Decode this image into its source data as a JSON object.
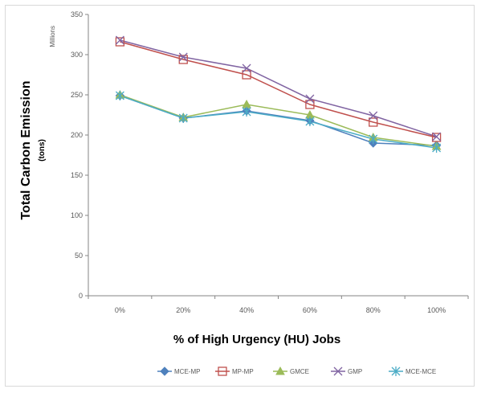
{
  "chart_data": {
    "type": "line",
    "title": "",
    "xlabel": "% of High Urgency (HU) Jobs",
    "ylabel": "Total Carbon Emission",
    "ylabel_sub": "(tons)",
    "units_label": "Millions",
    "categories": [
      "0%",
      "20%",
      "40%",
      "60%",
      "80%",
      "100%"
    ],
    "ylim": [
      0,
      350
    ],
    "yticks": [
      0,
      50,
      100,
      150,
      200,
      250,
      300,
      350
    ],
    "grid": false,
    "legend_position": "bottom",
    "series": [
      {
        "name": "MCE-MP",
        "values": [
          249,
          221,
          230,
          218,
          190,
          187
        ],
        "color": "#4f81bd",
        "marker": "diamond"
      },
      {
        "name": "MP-MP",
        "values": [
          316,
          294,
          275,
          238,
          216,
          197
        ],
        "color": "#c0504d",
        "marker": "square"
      },
      {
        "name": "GMCE",
        "values": [
          250,
          222,
          238,
          225,
          197,
          186
        ],
        "color": "#9bbb59",
        "marker": "triangle"
      },
      {
        "name": "GMP",
        "values": [
          318,
          297,
          283,
          245,
          224,
          198
        ],
        "color": "#8064a2",
        "marker": "x"
      },
      {
        "name": "MCE-MCE",
        "values": [
          249,
          221,
          229,
          217,
          195,
          184
        ],
        "color": "#4bacc6",
        "marker": "star"
      }
    ]
  }
}
